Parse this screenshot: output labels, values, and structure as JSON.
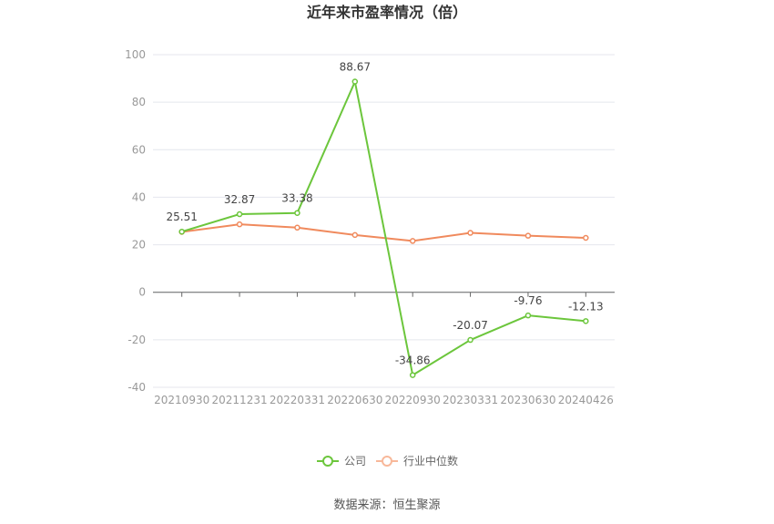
{
  "chart_data": {
    "type": "line",
    "title": "近年来市盈率情况（倍）",
    "categories": [
      "20210930",
      "20211231",
      "20220331",
      "20220630",
      "20220930",
      "20230331",
      "20230630",
      "20240426"
    ],
    "series": [
      {
        "name": "公司",
        "color": "#6cc63c",
        "values": [
          25.51,
          32.87,
          33.38,
          88.67,
          -34.86,
          -20.07,
          -9.76,
          -12.13
        ],
        "labels": [
          "25.51",
          "32.87",
          "33.38",
          "88.67",
          "-34.86",
          "-20.07",
          "-9.76",
          "-12.13"
        ]
      },
      {
        "name": "行业中位数",
        "color": "#f08a5d",
        "values": [
          25.4,
          28.6,
          27.2,
          24.1,
          21.6,
          25.0,
          23.8,
          22.9
        ]
      }
    ],
    "yticks": [
      "100",
      "80",
      "60",
      "40",
      "20",
      "0",
      "-20",
      "-40"
    ],
    "ylim": [
      -40,
      100
    ],
    "grid": true,
    "legend_position": "bottom"
  },
  "source": "数据来源：恒生聚源"
}
